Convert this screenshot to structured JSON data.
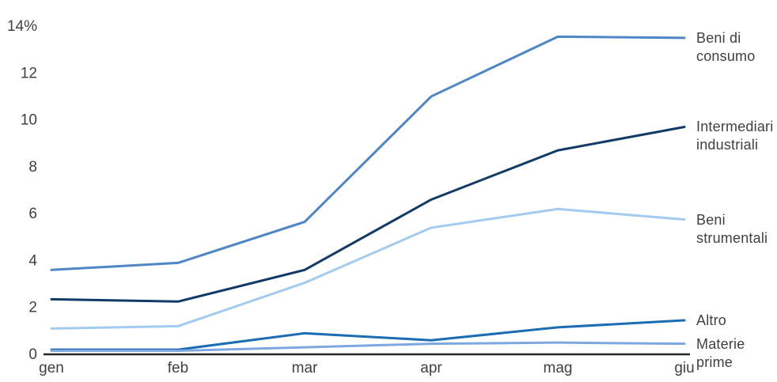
{
  "chart_data": {
    "type": "line",
    "title": "",
    "xlabel": "",
    "ylabel": "",
    "categories": [
      "gen",
      "feb",
      "mar",
      "apr",
      "mag",
      "giu"
    ],
    "series": [
      {
        "name": "Beni di consumo",
        "label_lines": [
          "Beni di",
          "consumo"
        ],
        "color": "#4E86C6",
        "values": [
          3.6,
          3.9,
          5.65,
          11.0,
          13.55,
          13.5
        ]
      },
      {
        "name": "Intermediari industriali",
        "label_lines": [
          "Intermediari",
          "industriali"
        ],
        "color": "#113A67",
        "values": [
          2.35,
          2.25,
          3.6,
          6.6,
          8.7,
          9.7
        ]
      },
      {
        "name": "Beni strumentali",
        "label_lines": [
          "Beni",
          "strumentali"
        ],
        "color": "#A3CBF0",
        "values": [
          1.1,
          1.2,
          3.05,
          5.4,
          6.2,
          5.75
        ]
      },
      {
        "name": "Altro",
        "label_lines": [
          "Altro"
        ],
        "color": "#1A6CB3",
        "values": [
          0.2,
          0.2,
          0.9,
          0.6,
          1.15,
          1.45
        ]
      },
      {
        "name": "Materie prime",
        "label_lines": [
          "Materie",
          "prime"
        ],
        "color": "#7FA7DF",
        "values": [
          0.15,
          0.15,
          0.3,
          0.45,
          0.5,
          0.45
        ]
      }
    ],
    "y_ticks": [
      {
        "value": 14,
        "label": "14%"
      },
      {
        "value": 12,
        "label": "12"
      },
      {
        "value": 10,
        "label": "10"
      },
      {
        "value": 8,
        "label": "8"
      },
      {
        "value": 6,
        "label": "6"
      },
      {
        "value": 4,
        "label": "4"
      },
      {
        "value": 2,
        "label": "2"
      },
      {
        "value": 0,
        "label": "0"
      }
    ],
    "ylim": [
      0,
      14
    ],
    "grid": false,
    "legend_position": "right",
    "text_color": "#404040",
    "axis_color": "#262626",
    "background": "#FFFFFF"
  }
}
